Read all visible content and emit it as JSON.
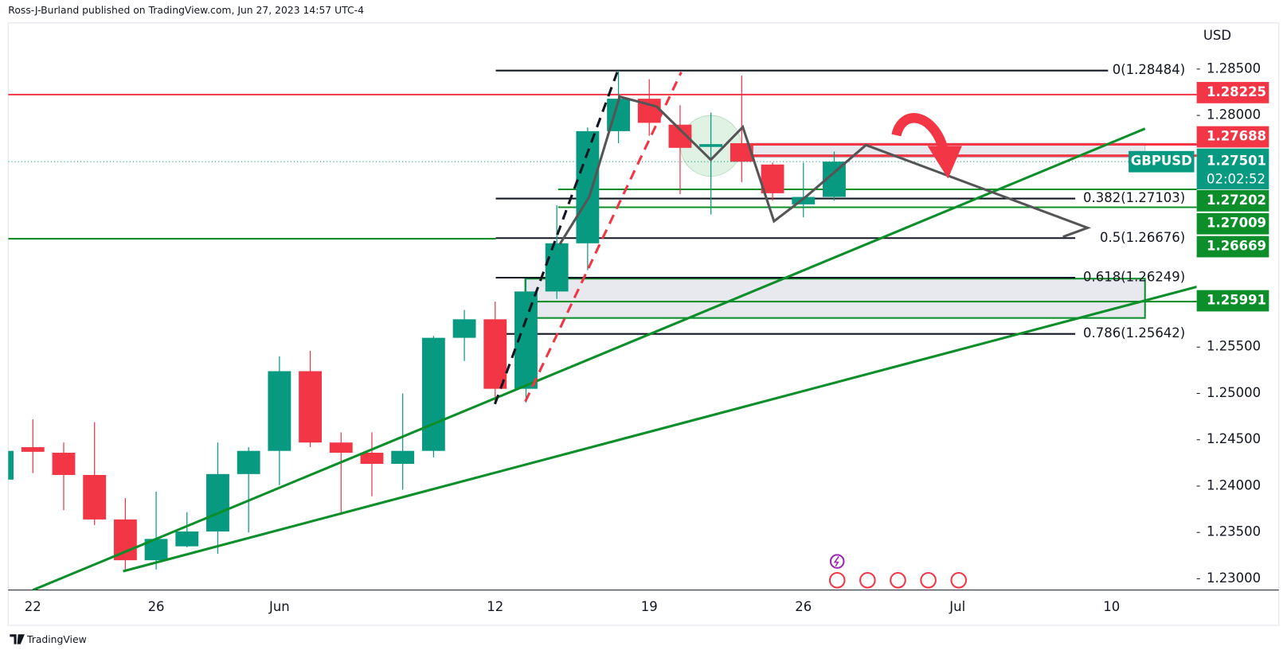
{
  "header": "Ross-J-Burland published on TradingView.com, Jun 27, 2023 14:57 UTC-4",
  "footer": "TradingView",
  "chart_data": {
    "type": "candlestick",
    "currency": "USD",
    "symbol": "GBPUSD",
    "countdown": "02:02:52",
    "up_color": "#089981",
    "down_color": "#f23645",
    "categories": [
      null,
      "22",
      null,
      null,
      null,
      "26",
      null,
      null,
      null,
      "Jun",
      null,
      null,
      null,
      null,
      null,
      null,
      "12",
      null,
      null,
      null,
      null,
      "19",
      null,
      null,
      null,
      null,
      "26",
      null,
      null,
      null,
      null,
      "Jul",
      null,
      null,
      null,
      null,
      "10",
      null,
      null
    ],
    "series": {
      "open": [
        1.2407,
        1.2442,
        1.2436,
        1.2412,
        1.2364,
        1.232,
        1.2335,
        1.2351,
        1.2413,
        1.2438,
        1.2524,
        1.2447,
        1.2436,
        1.2424,
        1.2438,
        1.256,
        1.258,
        1.2505,
        1.261,
        1.2662,
        1.2783,
        1.2818,
        1.279,
        1.2766,
        1.277,
        1.2747,
        1.2704,
        1.2712,
        null,
        null,
        null,
        null,
        null,
        null,
        null,
        null,
        null,
        null,
        null
      ],
      "high": [
        1.244,
        1.2472,
        1.2447,
        1.2469,
        1.2387,
        1.2394,
        1.2372,
        1.2447,
        1.2442,
        1.254,
        1.2546,
        1.2458,
        1.2458,
        1.25,
        1.2562,
        1.259,
        1.2599,
        1.2624,
        1.2703,
        1.2787,
        1.2848,
        1.2839,
        1.2811,
        1.2803,
        1.2843,
        1.2749,
        1.2749,
        1.2761,
        null,
        null,
        null,
        null,
        null,
        null,
        null,
        null,
        null,
        null,
        null
      ],
      "low": [
        1.24,
        1.2414,
        1.2374,
        1.2358,
        1.2308,
        1.231,
        1.2334,
        1.2327,
        1.235,
        1.2401,
        1.2442,
        1.2369,
        1.2389,
        1.2396,
        1.2431,
        1.2535,
        1.2489,
        1.249,
        1.2602,
        1.2633,
        1.277,
        1.2778,
        1.2715,
        1.2693,
        1.2728,
        1.2708,
        1.269,
        1.2708,
        null,
        null,
        null,
        null,
        null,
        null,
        null,
        null,
        null,
        null,
        null
      ],
      "close": [
        1.2438,
        1.2437,
        1.2412,
        1.2364,
        1.232,
        1.2343,
        1.2351,
        1.2413,
        1.2438,
        1.2524,
        1.2447,
        1.2436,
        1.2424,
        1.2438,
        1.256,
        1.258,
        1.2505,
        1.261,
        1.2662,
        1.2783,
        1.2818,
        1.2792,
        1.2765,
        1.2769,
        1.275,
        1.2716,
        1.2712,
        1.27501,
        null,
        null,
        null,
        null,
        null,
        null,
        null,
        null,
        null,
        null,
        null
      ]
    },
    "ylim": [
      1.22878,
      1.2898
    ],
    "yticks": [
      {
        "value": 1.285,
        "label": "1.28500"
      },
      {
        "value": 1.28,
        "label": "1.28000"
      },
      {
        "value": 1.255,
        "label": "1.25500"
      },
      {
        "value": 1.25,
        "label": "1.25000"
      },
      {
        "value": 1.245,
        "label": "1.24500"
      },
      {
        "value": 1.24,
        "label": "1.24000"
      },
      {
        "value": 1.235,
        "label": "1.23500"
      },
      {
        "value": 1.23,
        "label": "1.23000"
      }
    ],
    "fib_levels": [
      {
        "price": 1.28484,
        "label": "0(1.28484)"
      },
      {
        "price": 1.27103,
        "label": "0.382(1.27103)"
      },
      {
        "price": 1.26676,
        "label": "0.5(1.26676)"
      },
      {
        "price": 1.26249,
        "label": "0.618(1.26249)"
      },
      {
        "price": 1.25642,
        "label": "0.786(1.25642)"
      }
    ],
    "price_lines": [
      {
        "value": 1.28225,
        "color": "#f23645"
      },
      {
        "value": 1.27688,
        "color": "#f23645"
      },
      {
        "value": 1.27202,
        "color": "#0c8f2a"
      },
      {
        "value": 1.27009,
        "color": "#0c8f2a"
      },
      {
        "value": 1.26669,
        "color": "#0c8f2a"
      },
      {
        "value": 1.25991,
        "color": "#0c8f2a"
      }
    ]
  }
}
